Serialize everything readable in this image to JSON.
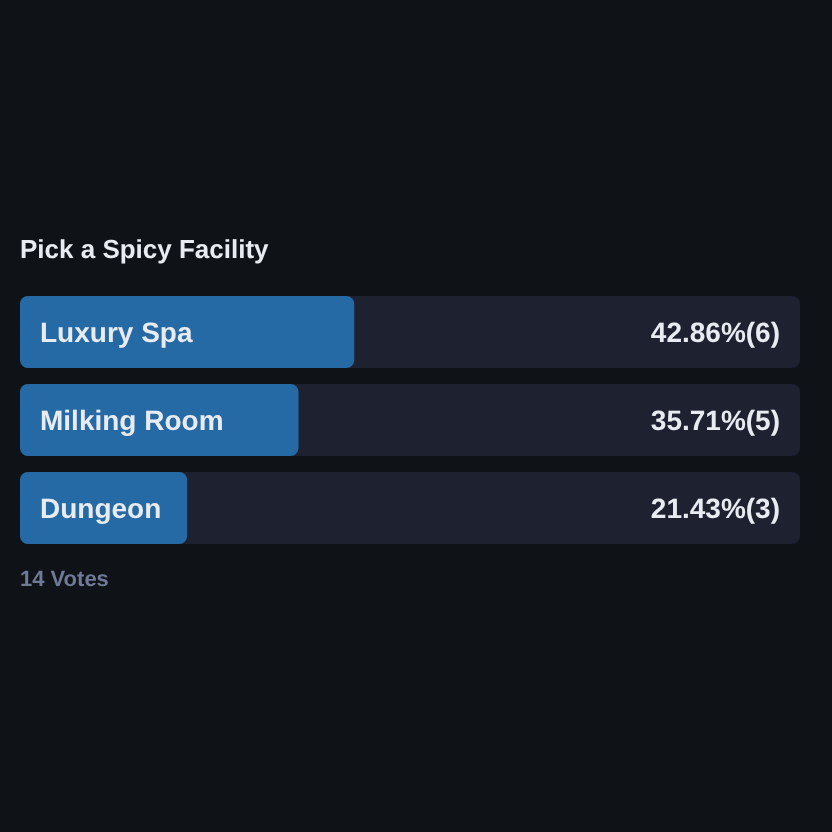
{
  "chart_data": {
    "type": "bar",
    "orientation": "horizontal",
    "title": "Pick a Spicy Facility",
    "categories": [
      "Luxury Spa",
      "Milking Room",
      "Dungeon"
    ],
    "values": [
      42.86,
      35.71,
      21.43
    ],
    "value_labels": [
      "42.86%(6)",
      "35.71%(5)",
      "21.43%(3)"
    ],
    "color": "#2569a5",
    "xlim": [
      0,
      100
    ],
    "annotations": [
      "14 Votes"
    ]
  }
}
